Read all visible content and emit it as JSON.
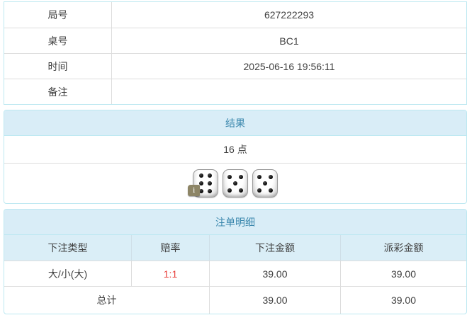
{
  "info": {
    "rows": [
      {
        "label": "局号",
        "value": "627222293"
      },
      {
        "label": "桌号",
        "value": "BC1"
      },
      {
        "label": "时间",
        "value": "2025-06-16 19:56:11"
      },
      {
        "label": "备注",
        "value": ""
      }
    ]
  },
  "result": {
    "header": "结果",
    "points": "16 点",
    "dice": [
      6,
      5,
      5
    ],
    "badge": {
      "text": "i",
      "die_index": 0
    }
  },
  "bets": {
    "header": "注单明细",
    "columns": [
      "下注类型",
      "赔率",
      "下注金额",
      "派彩金额"
    ],
    "rows": [
      {
        "type": "大/小(大)",
        "odds": "1:1",
        "bet": "39.00",
        "payout": "39.00"
      }
    ],
    "total": {
      "label": "总计",
      "bet": "39.00",
      "payout": "39.00"
    }
  },
  "colors": {
    "panel_border": "#bce8f1",
    "panel_header_bg": "#d9edf7",
    "panel_header_text": "#3a87ad",
    "odds_red": "#e8413c",
    "row_divider": "#dddddd",
    "body_text": "#3f3f3f"
  }
}
